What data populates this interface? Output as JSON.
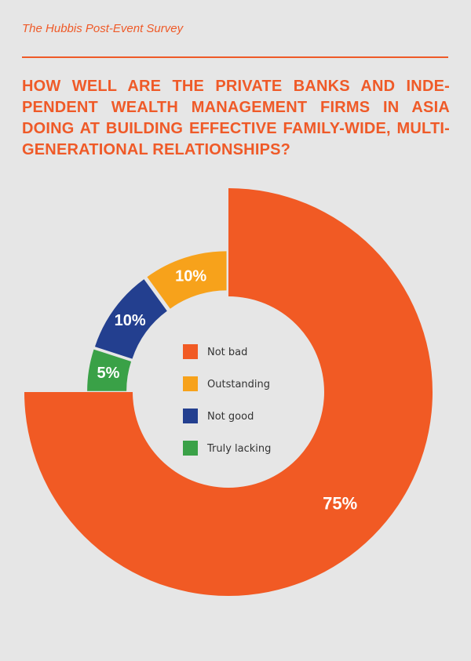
{
  "header": {
    "source": "The Hubbis Post-Event Survey"
  },
  "chart_data": {
    "type": "pie",
    "style": "donut",
    "title": "HOW WELL ARE THE PRIVATE BANKS AND INDE-PENDENT WEALTH MANAGEMENT FIRMS IN ASIA DOING AT BUILDING EFFECTIVE FAMILY-WIDE, MULTI-GENERATIONAL RELATIONSHIPS?",
    "legend_position": "center",
    "slices": [
      {
        "label": "Not bad",
        "value": 75,
        "display": "75%",
        "color": "#f15a24",
        "explode": 0
      },
      {
        "label": "Truly lacking",
        "value": 5,
        "display": "5%",
        "color": "#3aa147",
        "explode": 1
      },
      {
        "label": "Not good",
        "value": 10,
        "display": "10%",
        "color": "#233f8f",
        "explode": 1
      },
      {
        "label": "Outstanding",
        "value": 10,
        "display": "10%",
        "color": "#f7a21b",
        "explode": 1
      }
    ],
    "legend": [
      {
        "label": "Not bad",
        "color": "#f15a24"
      },
      {
        "label": "Outstanding",
        "color": "#f7a21b"
      },
      {
        "label": "Not good",
        "color": "#233f8f"
      },
      {
        "label": "Truly lacking",
        "color": "#3aa147"
      }
    ]
  }
}
